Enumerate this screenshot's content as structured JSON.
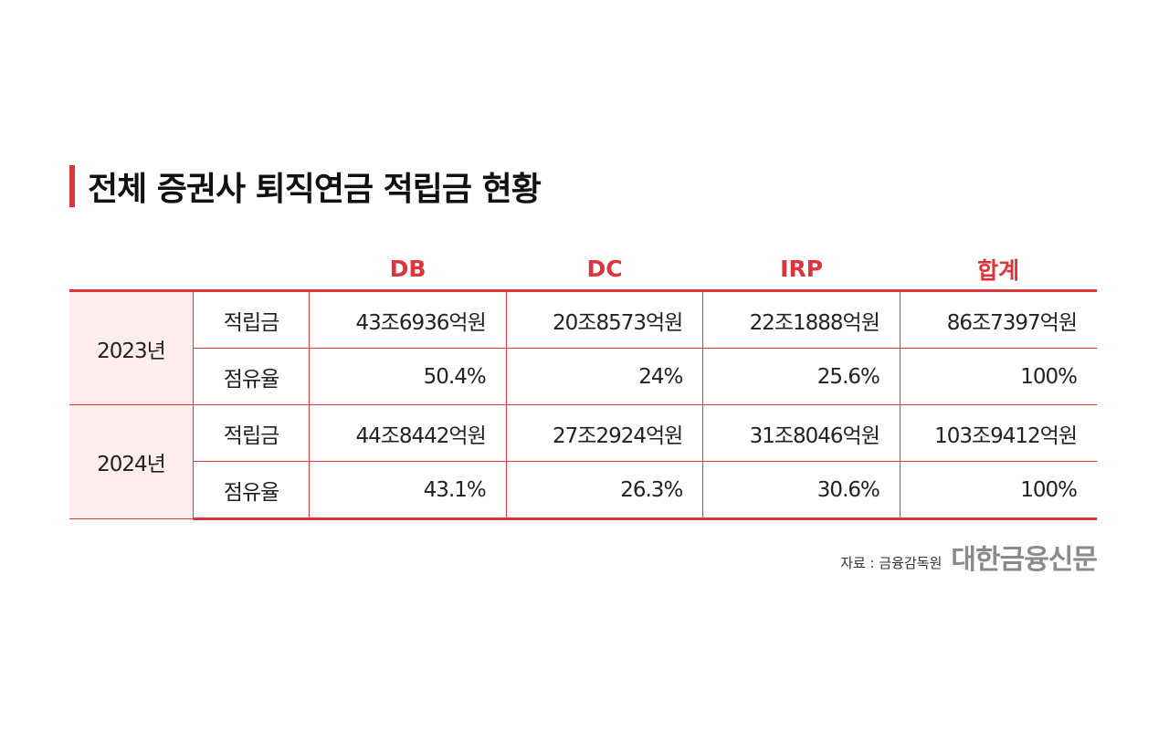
{
  "title": "전체 증권사 퇴직연금 적립금 현황",
  "columns": [
    "DB",
    "DC",
    "IRP",
    "합계"
  ],
  "rows": [
    {
      "year": "2023년",
      "reserve_label": "적립금",
      "reserve": [
        "43조6936억원",
        "20조8573억원",
        "22조1888억원",
        "86조7397억원"
      ],
      "share_label": "점유율",
      "share": [
        "50.4%",
        "24%",
        "25.6%",
        "100%"
      ]
    },
    {
      "year": "2024년",
      "reserve_label": "적립금",
      "reserve": [
        "44조8442억원",
        "27조2924억원",
        "31조8046억원",
        "103조9412억원"
      ],
      "share_label": "점유율",
      "share": [
        "43.1%",
        "26.3%",
        "30.6%",
        "100%"
      ]
    }
  ],
  "source": {
    "label": "자료 : 금융감독원",
    "logo": "대한금융신문"
  },
  "colors": {
    "accent": "#e0343c",
    "year_cell_bg": "#fdeeed"
  }
}
